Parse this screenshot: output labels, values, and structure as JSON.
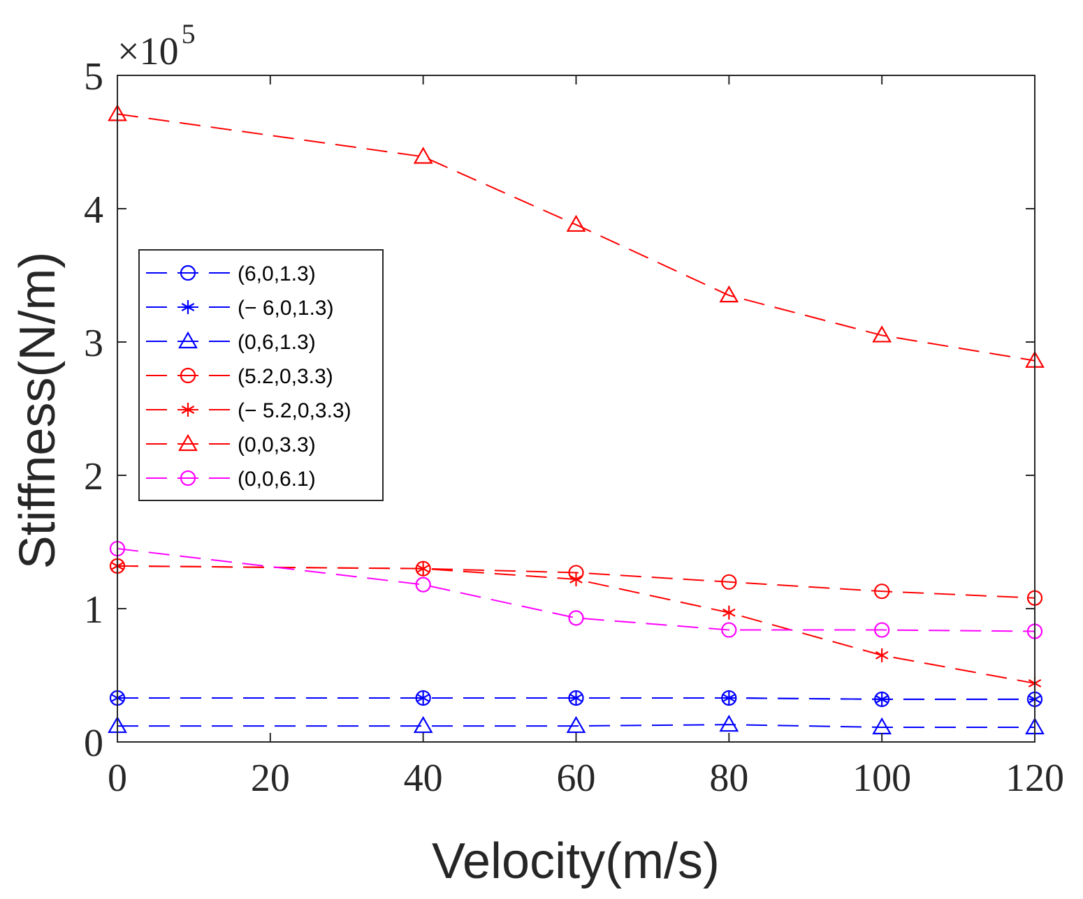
{
  "chart_data": {
    "type": "line",
    "xlabel": "Velocity(m/s)",
    "ylabel": "Stiffness(N/m)",
    "y_multiplier": {
      "base": "×10",
      "exponent": "5"
    },
    "xlim": [
      0,
      120
    ],
    "ylim": [
      0,
      5
    ],
    "xticks": [
      0,
      20,
      40,
      60,
      80,
      100,
      120
    ],
    "yticks": [
      0,
      1,
      2,
      3,
      4,
      5
    ],
    "x": [
      0,
      40,
      60,
      80,
      100,
      120
    ],
    "legend_position": "left-middle",
    "grid": false,
    "series": [
      {
        "name": "(6,0,1.3)",
        "color": "#0000ff",
        "marker": "circle",
        "line_style": "dashed",
        "values": [
          0.33,
          0.33,
          0.33,
          0.33,
          0.32,
          0.32
        ]
      },
      {
        "name": "(− 6,0,1.3)",
        "color": "#0000ff",
        "marker": "asterisk",
        "line_style": "dashed",
        "values": [
          0.33,
          0.33,
          0.33,
          0.33,
          0.32,
          0.32
        ]
      },
      {
        "name": "(0,6,1.3)",
        "color": "#0000ff",
        "marker": "triangle",
        "line_style": "dashed",
        "values": [
          0.12,
          0.12,
          0.12,
          0.13,
          0.11,
          0.11
        ]
      },
      {
        "name": "(5.2,0,3.3)",
        "color": "#ff0000",
        "marker": "circle",
        "line_style": "dashed",
        "values": [
          1.32,
          1.3,
          1.27,
          1.2,
          1.13,
          1.08
        ]
      },
      {
        "name": "(− 5.2,0,3.3)",
        "color": "#ff0000",
        "marker": "asterisk",
        "line_style": "dashed",
        "values": [
          1.32,
          1.3,
          1.22,
          0.97,
          0.65,
          0.44
        ]
      },
      {
        "name": "(0,0,3.3)",
        "color": "#ff0000",
        "marker": "triangle",
        "line_style": "dashed",
        "values": [
          4.71,
          4.39,
          3.88,
          3.35,
          3.05,
          2.86
        ]
      },
      {
        "name": "(0,0,6.1)",
        "color": "#ff00ff",
        "marker": "circle",
        "line_style": "dashed",
        "values": [
          1.45,
          1.18,
          0.93,
          0.84,
          0.84,
          0.83
        ]
      }
    ]
  }
}
